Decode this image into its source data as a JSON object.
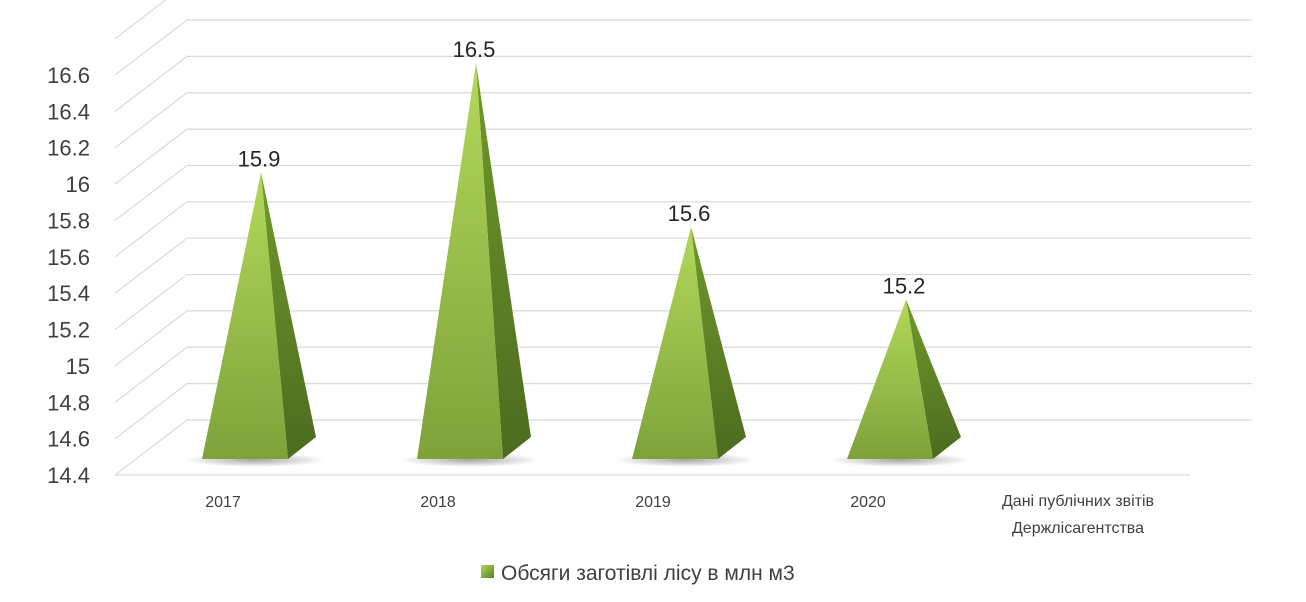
{
  "chart_data": {
    "type": "bar",
    "style": "3d-pyramid",
    "categories": [
      "2017",
      "2018",
      "2019",
      "2020",
      "Дані публічних звітів Держлісагентства"
    ],
    "series": [
      {
        "name": "Обсяги заготівлі лісу в млн м3",
        "values": [
          15.9,
          16.5,
          15.6,
          15.2,
          null
        ],
        "color": "#8db83f"
      }
    ],
    "data_labels": [
      "15.9",
      "16.5",
      "15.6",
      "15.2",
      ""
    ],
    "y_ticks": [
      "14.4",
      "14.6",
      "14.8",
      "15",
      "15.2",
      "15.4",
      "15.6",
      "15.8",
      "16",
      "16.2",
      "16.4",
      "16.6"
    ],
    "ylim": [
      14.4,
      16.8
    ],
    "grid": true,
    "legend_position": "bottom",
    "colors": {
      "face_light": "#a6cd52",
      "face_dark": "#79a235",
      "side": "#5a7e25",
      "grid": "#d9d9d9",
      "text": "#404040"
    }
  }
}
